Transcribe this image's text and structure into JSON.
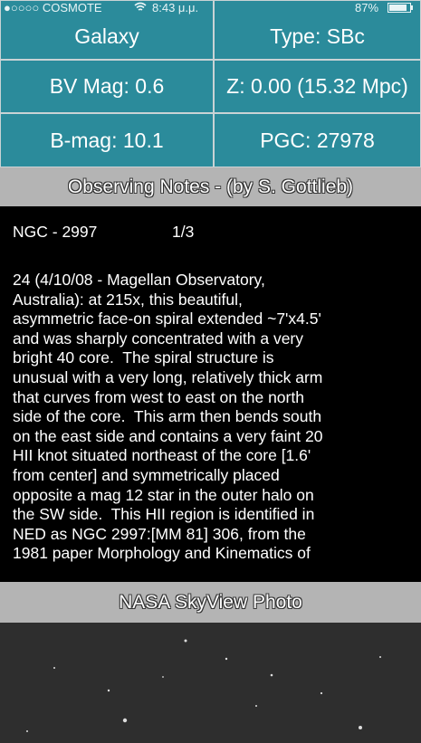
{
  "status_bar": {
    "carrier": "●○○○○ COSMOTE",
    "time": "8:43 μ.μ.",
    "battery": "87%"
  },
  "info_grid": {
    "rows": [
      [
        "Galaxy",
        "Type: SBc"
      ],
      [
        "BV Mag: 0.6",
        "Z: 0.00 (15.32 Mpc)"
      ],
      [
        "B-mag: 10.1",
        "PGC: 27978"
      ]
    ]
  },
  "notes_section": {
    "title": "Observing Notes - (by S. Gottlieb)",
    "header": "NGC - 2997",
    "page": "1/3",
    "lines": [
      "24 (4/10/08 - Magellan Observatory,",
      "Australia): at 215x, this beautiful,",
      "asymmetric face-on spiral extended ~7'x4.5'",
      "and was sharply concentrated with a very",
      "bright 40 core.  The spiral structure is",
      "unusual with a very long, relatively thick arm",
      "that curves from west to east on the north",
      "side of the core.  This arm then bends south",
      "on the east side and contains a very faint 20",
      "HII knot situated northeast of the core [1.6'",
      "from center] and symmetrically placed",
      "opposite a mag 12 star in the outer halo on",
      "the SW side.  This HII region is identified in",
      "NED as NGC 2997:[MM 81] 306, from the",
      "1981 paper Morphology and Kinematics of"
    ]
  },
  "photo_section": {
    "title": "NASA SkyView Photo"
  }
}
